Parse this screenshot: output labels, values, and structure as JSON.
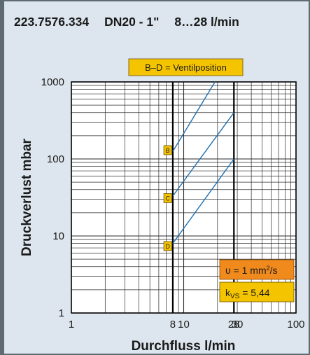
{
  "header": {
    "article": "223.7576.334",
    "dn": "DN20 - 1\"",
    "flow_range": "8…28 l/min"
  },
  "colors": {
    "panel_bg": "#dde6ee",
    "border": "#5f6b73",
    "plot_bg": "#ffffff",
    "curve": "#1f6fb0",
    "box_yellow": "#f5c400",
    "box_orange": "#f08a1c",
    "text": "#1a1a1a"
  },
  "chart_data": {
    "type": "line",
    "title": "",
    "xlabel": "Durchfluss l/min",
    "ylabel": "Druckverlust mbar",
    "x_scale": "log",
    "y_scale": "log",
    "xlim": [
      1,
      100
    ],
    "ylim": [
      1,
      1000
    ],
    "grid": true,
    "x_ticks": [
      {
        "value": 1,
        "label": "1"
      },
      {
        "value": 8,
        "label": "8"
      },
      {
        "value": 10,
        "label": "10"
      },
      {
        "value": 28,
        "label": "28"
      },
      {
        "value": 30,
        "label": "30"
      },
      {
        "value": 100,
        "label": "100"
      }
    ],
    "y_ticks": [
      {
        "value": 1,
        "label": "1"
      },
      {
        "value": 10,
        "label": "10"
      },
      {
        "value": 100,
        "label": "100"
      },
      {
        "value": 1000,
        "label": "1000"
      }
    ],
    "highlight_x": [
      8,
      28
    ],
    "legend_box": "B–D = Ventilposition",
    "series": [
      {
        "name": "B",
        "label_at": [
          7.2,
          130
        ],
        "points": [
          [
            8,
            125
          ],
          [
            19,
            1000
          ]
        ]
      },
      {
        "name": "C",
        "label_at": [
          7.2,
          31
        ],
        "points": [
          [
            8,
            33
          ],
          [
            28,
            400
          ]
        ]
      },
      {
        "name": "D",
        "label_at": [
          7.2,
          7.4
        ],
        "points": [
          [
            8,
            8
          ],
          [
            28,
            100
          ]
        ]
      }
    ],
    "annotations": {
      "viscosity": {
        "pre": "υ = 1 mm",
        "sup": "2",
        "post": "/s"
      },
      "kvs": {
        "pre": "k",
        "sub": "VS",
        "post": " = 5,44"
      }
    }
  }
}
